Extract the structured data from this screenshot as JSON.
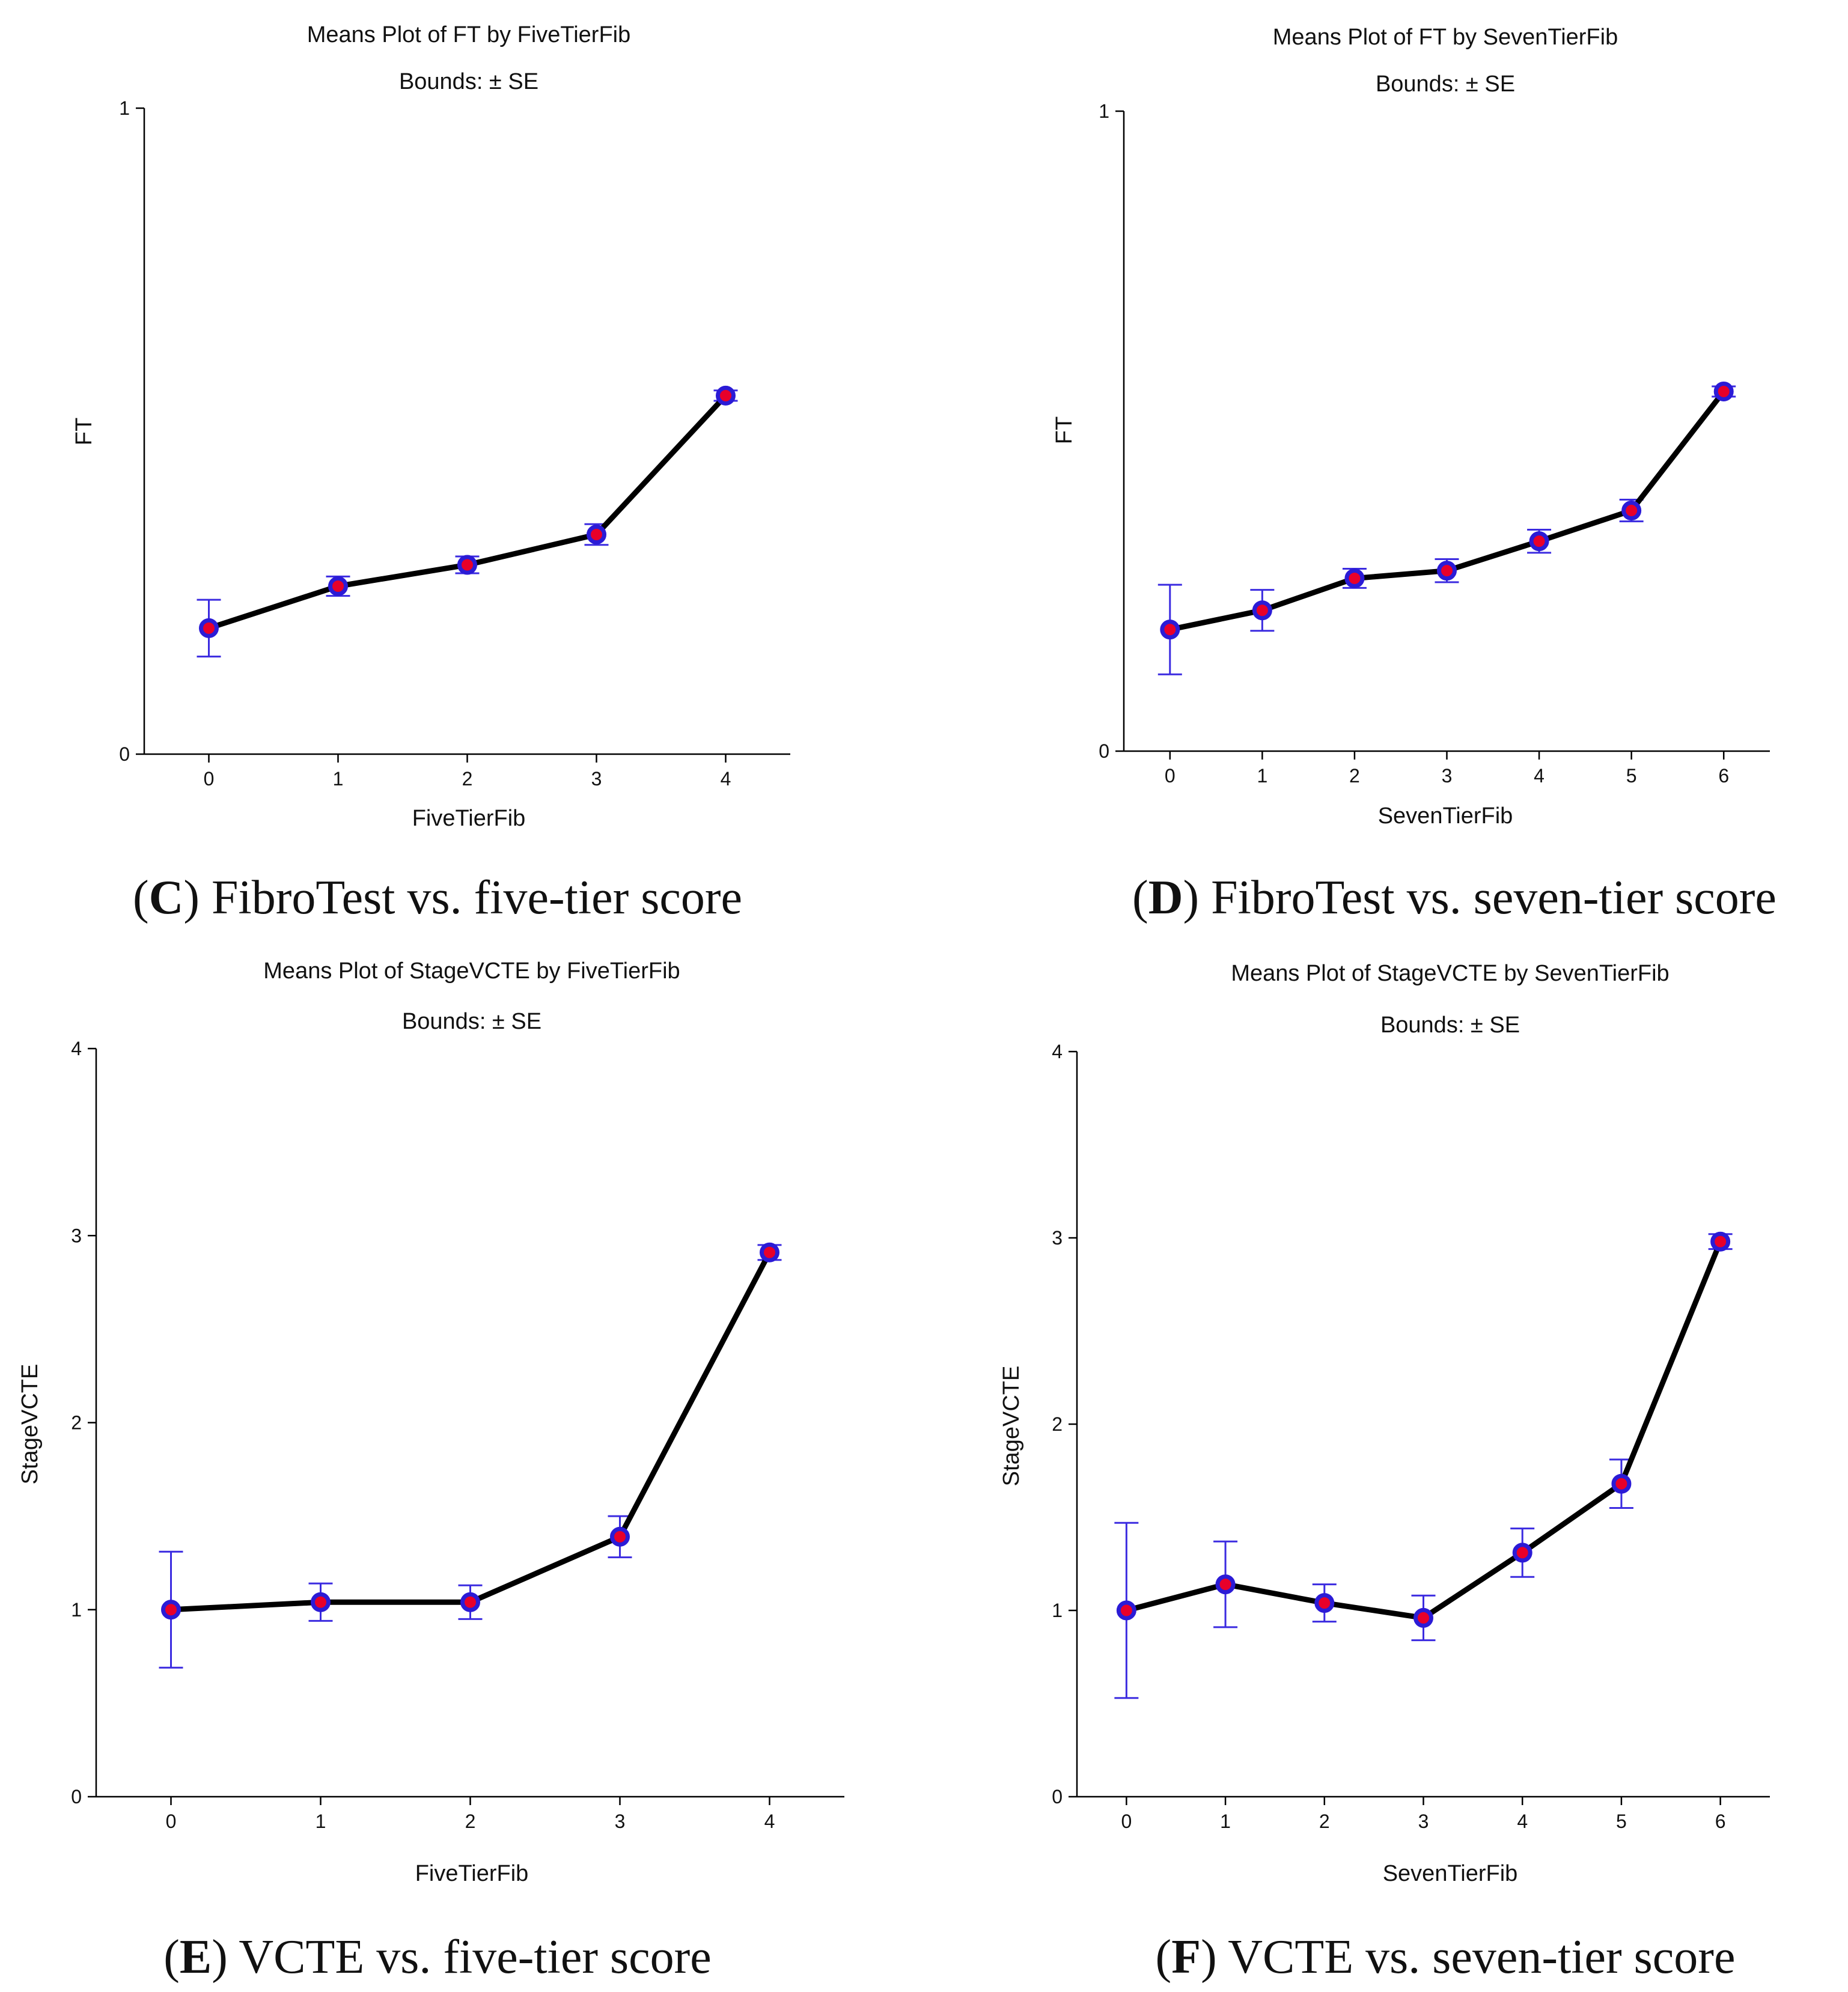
{
  "figure": {
    "background": "#ffffff"
  },
  "colors": {
    "line": "#000000",
    "marker_fill": "#e8002a",
    "marker_edge": "#2b1bd6",
    "errorbar": "#3b2be0",
    "axis": "#000000"
  },
  "chart_data": [
    {
      "id": "C",
      "type": "line",
      "title": "Means Plot of FT by FiveTierFib",
      "subtitle": "Bounds:  ± SE",
      "xlabel": "FiveTierFib",
      "ylabel": "FT",
      "x": [
        0,
        1,
        2,
        3,
        4
      ],
      "x_ticks": [
        "0",
        "1",
        "2",
        "3",
        "4"
      ],
      "y_ticks": [
        "0",
        "1"
      ],
      "ylim": [
        0,
        1
      ],
      "xlim": [
        -0.5,
        4.5
      ],
      "series": [
        {
          "name": "Mean",
          "values": [
            0.195,
            0.26,
            0.293,
            0.34,
            0.555
          ],
          "se": [
            0.044,
            0.015,
            0.013,
            0.016,
            0.008
          ]
        }
      ],
      "caption": {
        "letter": "C",
        "text": "FibroTest vs. five-tier score"
      }
    },
    {
      "id": "D",
      "type": "line",
      "title": "Means Plot of FT by SevenTierFib",
      "subtitle": "Bounds:  ± SE",
      "xlabel": "SevenTierFib",
      "ylabel": "FT",
      "x": [
        0,
        1,
        2,
        3,
        4,
        5,
        6
      ],
      "x_ticks": [
        "0",
        "1",
        "2",
        "3",
        "4",
        "5",
        "6"
      ],
      "y_ticks": [
        "0",
        "1"
      ],
      "ylim": [
        0,
        1
      ],
      "xlim": [
        -0.5,
        6.5
      ],
      "series": [
        {
          "name": "Mean",
          "values": [
            0.19,
            0.22,
            0.27,
            0.282,
            0.328,
            0.376,
            0.562
          ],
          "se": [
            0.07,
            0.032,
            0.015,
            0.018,
            0.018,
            0.017,
            0.008
          ]
        }
      ],
      "caption": {
        "letter": "D",
        "text": "FibroTest vs. seven-tier score"
      }
    },
    {
      "id": "E",
      "type": "line",
      "title": "Means Plot of StageVCTE by FiveTierFib",
      "subtitle": "Bounds:  ± SE",
      "xlabel": "FiveTierFib",
      "ylabel": "StageVCTE",
      "x": [
        0,
        1,
        2,
        3,
        4
      ],
      "x_ticks": [
        "0",
        "1",
        "2",
        "3",
        "4"
      ],
      "y_ticks": [
        "0",
        "1",
        "2",
        "3",
        "4"
      ],
      "ylim": [
        0,
        4
      ],
      "xlim": [
        -0.5,
        4.5
      ],
      "series": [
        {
          "name": "Mean",
          "values": [
            1.0,
            1.04,
            1.04,
            1.39,
            2.91
          ],
          "se": [
            0.31,
            0.1,
            0.09,
            0.11,
            0.04
          ]
        }
      ],
      "caption": {
        "letter": "E",
        "text": "VCTE vs. five-tier score"
      }
    },
    {
      "id": "F",
      "type": "line",
      "title": "Means Plot of StageVCTE by SevenTierFib",
      "subtitle": "Bounds:  ± SE",
      "xlabel": "SevenTierFib",
      "ylabel": "StageVCTE",
      "x": [
        0,
        1,
        2,
        3,
        4,
        5,
        6
      ],
      "x_ticks": [
        "0",
        "1",
        "2",
        "3",
        "4",
        "5",
        "6"
      ],
      "y_ticks": [
        "0",
        "1",
        "2",
        "3",
        "4"
      ],
      "ylim": [
        0,
        4
      ],
      "xlim": [
        -0.5,
        6.5
      ],
      "series": [
        {
          "name": "Mean",
          "values": [
            1.0,
            1.14,
            1.04,
            0.96,
            1.31,
            1.68,
            2.98
          ],
          "se": [
            0.47,
            0.23,
            0.1,
            0.12,
            0.13,
            0.13,
            0.04
          ]
        }
      ],
      "caption": {
        "letter": "F",
        "text": "VCTE vs. seven-tier score"
      }
    }
  ]
}
